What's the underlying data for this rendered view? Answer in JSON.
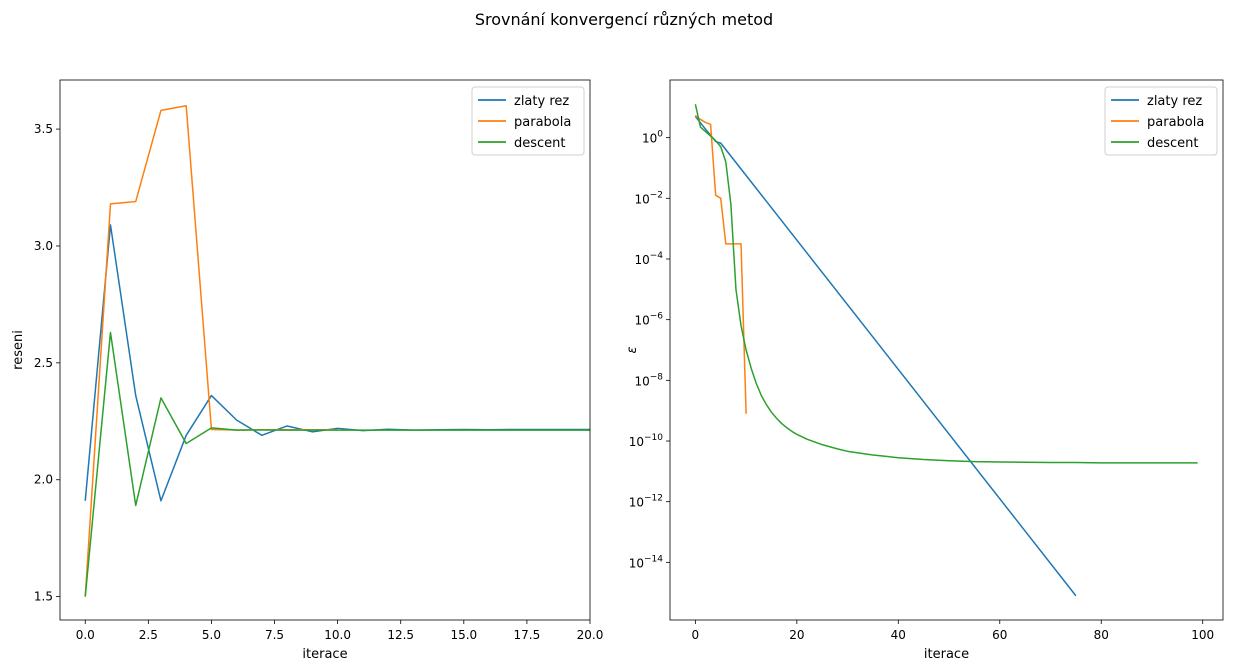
{
  "chart_data": [
    {
      "type": "line",
      "suptitle": "Srovnání konvergencí různých metod",
      "title": "",
      "xlabel": "iterace",
      "ylabel": "reseni",
      "xlim": [
        -1,
        20
      ],
      "ylim": [
        1.4,
        3.71
      ],
      "xticks": [
        0,
        2.5,
        5,
        7.5,
        10,
        12.5,
        15,
        17.5,
        20
      ],
      "xtick_labels": [
        "0.0",
        "2.5",
        "5.0",
        "7.5",
        "10.0",
        "12.5",
        "15.0",
        "17.5",
        "20.0"
      ],
      "yticks": [
        1.5,
        2.0,
        2.5,
        3.0,
        3.5
      ],
      "ytick_labels": [
        "1.5",
        "2.0",
        "2.5",
        "3.0",
        "3.5"
      ],
      "yscale": "linear",
      "grid": false,
      "legend": "top-right",
      "series": [
        {
          "name": "zlaty rez",
          "color": "#1f77b4",
          "x": [
            0,
            1,
            2,
            3,
            4,
            5,
            6,
            7,
            8,
            9,
            10,
            11,
            12,
            13,
            14,
            15,
            16,
            17,
            18,
            19,
            20
          ],
          "y": [
            1.91,
            3.09,
            2.36,
            1.91,
            2.19,
            2.36,
            2.255,
            2.19,
            2.23,
            2.205,
            2.22,
            2.21,
            2.216,
            2.212,
            2.214,
            2.215,
            2.214,
            2.215,
            2.215,
            2.215,
            2.215
          ]
        },
        {
          "name": "parabola",
          "color": "#ff7f0e",
          "x": [
            0,
            1,
            2,
            3,
            4,
            5,
            6,
            7,
            8,
            9,
            10
          ],
          "y": [
            1.5,
            3.18,
            3.19,
            3.58,
            3.6,
            2.215,
            2.213,
            2.214,
            2.214,
            2.214,
            2.214
          ]
        },
        {
          "name": "descent",
          "color": "#2ca02c",
          "x": [
            0,
            1,
            2,
            3,
            4,
            5,
            6,
            7,
            8,
            9,
            10,
            11,
            12,
            13,
            14,
            15,
            16,
            17,
            18,
            19,
            20
          ],
          "y": [
            1.5,
            2.63,
            1.89,
            2.35,
            2.155,
            2.222,
            2.212,
            2.213,
            2.212,
            2.212,
            2.212,
            2.212,
            2.212,
            2.212,
            2.212,
            2.212,
            2.212,
            2.212,
            2.212,
            2.212,
            2.212
          ]
        }
      ]
    },
    {
      "type": "line",
      "title": "",
      "xlabel": "iterace",
      "ylabel": "ε",
      "xlim": [
        -5,
        104
      ],
      "ylim": [
        -15.9,
        1.9
      ],
      "yscale": "log",
      "xticks": [
        0,
        20,
        40,
        60,
        80,
        100
      ],
      "xtick_labels": [
        "0",
        "20",
        "40",
        "60",
        "80",
        "100"
      ],
      "yticks": [
        0,
        -2,
        -4,
        -6,
        -8,
        -10,
        -12,
        -14
      ],
      "ytick_base": "10",
      "ytick_exponents": [
        "0",
        "−2",
        "−4",
        "−6",
        "−8",
        "−10",
        "−12",
        "−14"
      ],
      "grid": false,
      "legend": "top-right",
      "series": [
        {
          "name": "zlaty rez",
          "color": "#1f77b4",
          "x": [
            0,
            1,
            2,
            3,
            4,
            5,
            75
          ],
          "log10_y": [
            0.7,
            0.49,
            0.28,
            0.08,
            -0.13,
            -0.18,
            -15.1
          ]
        },
        {
          "name": "parabola",
          "color": "#ff7f0e",
          "x": [
            0,
            1,
            2,
            3,
            4,
            5,
            6,
            7,
            8,
            9,
            10
          ],
          "log10_y": [
            0.73,
            0.6,
            0.5,
            0.44,
            -1.9,
            -2.0,
            -3.5,
            -3.5,
            -3.5,
            -3.5,
            -9.1
          ]
        },
        {
          "name": "descent",
          "color": "#2ca02c",
          "x": [
            0,
            1,
            2,
            3,
            4,
            5,
            6,
            7,
            8,
            9,
            10,
            11,
            12,
            13,
            14,
            15,
            16,
            17,
            18,
            19,
            20,
            22,
            25,
            28,
            30,
            35,
            40,
            45,
            50,
            55,
            60,
            65,
            70,
            75,
            80,
            85,
            90,
            95,
            99
          ],
          "log10_y": [
            1.1,
            0.35,
            0.2,
            0.05,
            -0.1,
            -0.3,
            -0.8,
            -2.2,
            -5.0,
            -6.2,
            -7.0,
            -7.6,
            -8.1,
            -8.5,
            -8.8,
            -9.05,
            -9.25,
            -9.42,
            -9.56,
            -9.68,
            -9.78,
            -9.94,
            -10.12,
            -10.26,
            -10.34,
            -10.46,
            -10.55,
            -10.61,
            -10.65,
            -10.68,
            -10.69,
            -10.7,
            -10.71,
            -10.71,
            -10.72,
            -10.72,
            -10.72,
            -10.72,
            -10.72
          ]
        }
      ]
    }
  ]
}
